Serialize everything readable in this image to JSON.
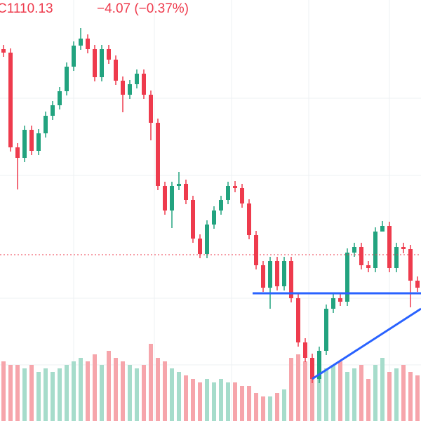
{
  "header": {
    "close_label": "C1110.13",
    "change_label": "−4.07 (−0.37%)"
  },
  "chart_data": {
    "type": "candlestick",
    "ylim": [
      0,
      600
    ],
    "vlim": [
      0,
      150
    ],
    "up_color": "#22a37f",
    "down_color": "#ee3b4d",
    "up_volume_color": "#a6dccb",
    "down_volume_color": "#f6a5ab",
    "open": [
      530,
      525,
      390,
      375,
      415,
      385,
      410,
      435,
      450,
      470,
      505,
      535,
      545,
      530,
      490,
      530,
      515,
      485,
      465,
      480,
      495,
      465,
      425,
      335,
      300,
      335,
      338,
      315,
      260,
      238,
      280,
      300,
      315,
      335,
      332,
      310,
      265,
      222,
      190,
      228,
      192,
      228,
      175,
      112,
      90,
      60,
      100,
      160,
      175,
      170,
      240,
      248,
      222,
      218,
      270,
      278,
      218,
      248,
      245,
      200
    ],
    "high": [
      536,
      531,
      396,
      421,
      421,
      416,
      441,
      456,
      476,
      511,
      541,
      560,
      551,
      536,
      536,
      536,
      521,
      491,
      486,
      501,
      501,
      471,
      431,
      341,
      341,
      355,
      344,
      321,
      266,
      286,
      306,
      321,
      341,
      342,
      338,
      316,
      271,
      228,
      234,
      234,
      234,
      234,
      181,
      118,
      96,
      106,
      166,
      181,
      181,
      246,
      254,
      254,
      228,
      276,
      285,
      284,
      254,
      254,
      251,
      206
    ],
    "low": [
      519,
      384,
      330,
      369,
      379,
      379,
      404,
      429,
      444,
      464,
      499,
      529,
      524,
      484,
      484,
      509,
      479,
      440,
      459,
      474,
      459,
      400,
      329,
      294,
      275,
      329,
      309,
      254,
      232,
      232,
      274,
      294,
      309,
      326,
      304,
      259,
      216,
      184,
      160,
      186,
      186,
      169,
      106,
      84,
      54,
      54,
      94,
      154,
      164,
      164,
      234,
      216,
      212,
      212,
      272,
      212,
      212,
      239,
      162,
      184
    ],
    "close": [
      525,
      390,
      375,
      415,
      385,
      410,
      435,
      450,
      470,
      505,
      535,
      545,
      530,
      490,
      530,
      515,
      485,
      465,
      480,
      495,
      465,
      425,
      335,
      300,
      335,
      338,
      315,
      260,
      238,
      280,
      300,
      315,
      335,
      332,
      310,
      265,
      222,
      190,
      228,
      192,
      228,
      175,
      112,
      90,
      60,
      100,
      160,
      175,
      170,
      240,
      248,
      222,
      218,
      270,
      278,
      218,
      248,
      245,
      200,
      190
    ],
    "volume": [
      85,
      80,
      80,
      75,
      80,
      70,
      75,
      70,
      75,
      80,
      85,
      90,
      85,
      95,
      80,
      100,
      90,
      85,
      80,
      75,
      80,
      110,
      90,
      85,
      75,
      70,
      65,
      60,
      55,
      60,
      55,
      60,
      55,
      55,
      50,
      50,
      40,
      35,
      35,
      40,
      45,
      90,
      95,
      85,
      75,
      70,
      75,
      80,
      85,
      70,
      75,
      80,
      60,
      80,
      90,
      70,
      75,
      80,
      70,
      65
    ]
  }
}
